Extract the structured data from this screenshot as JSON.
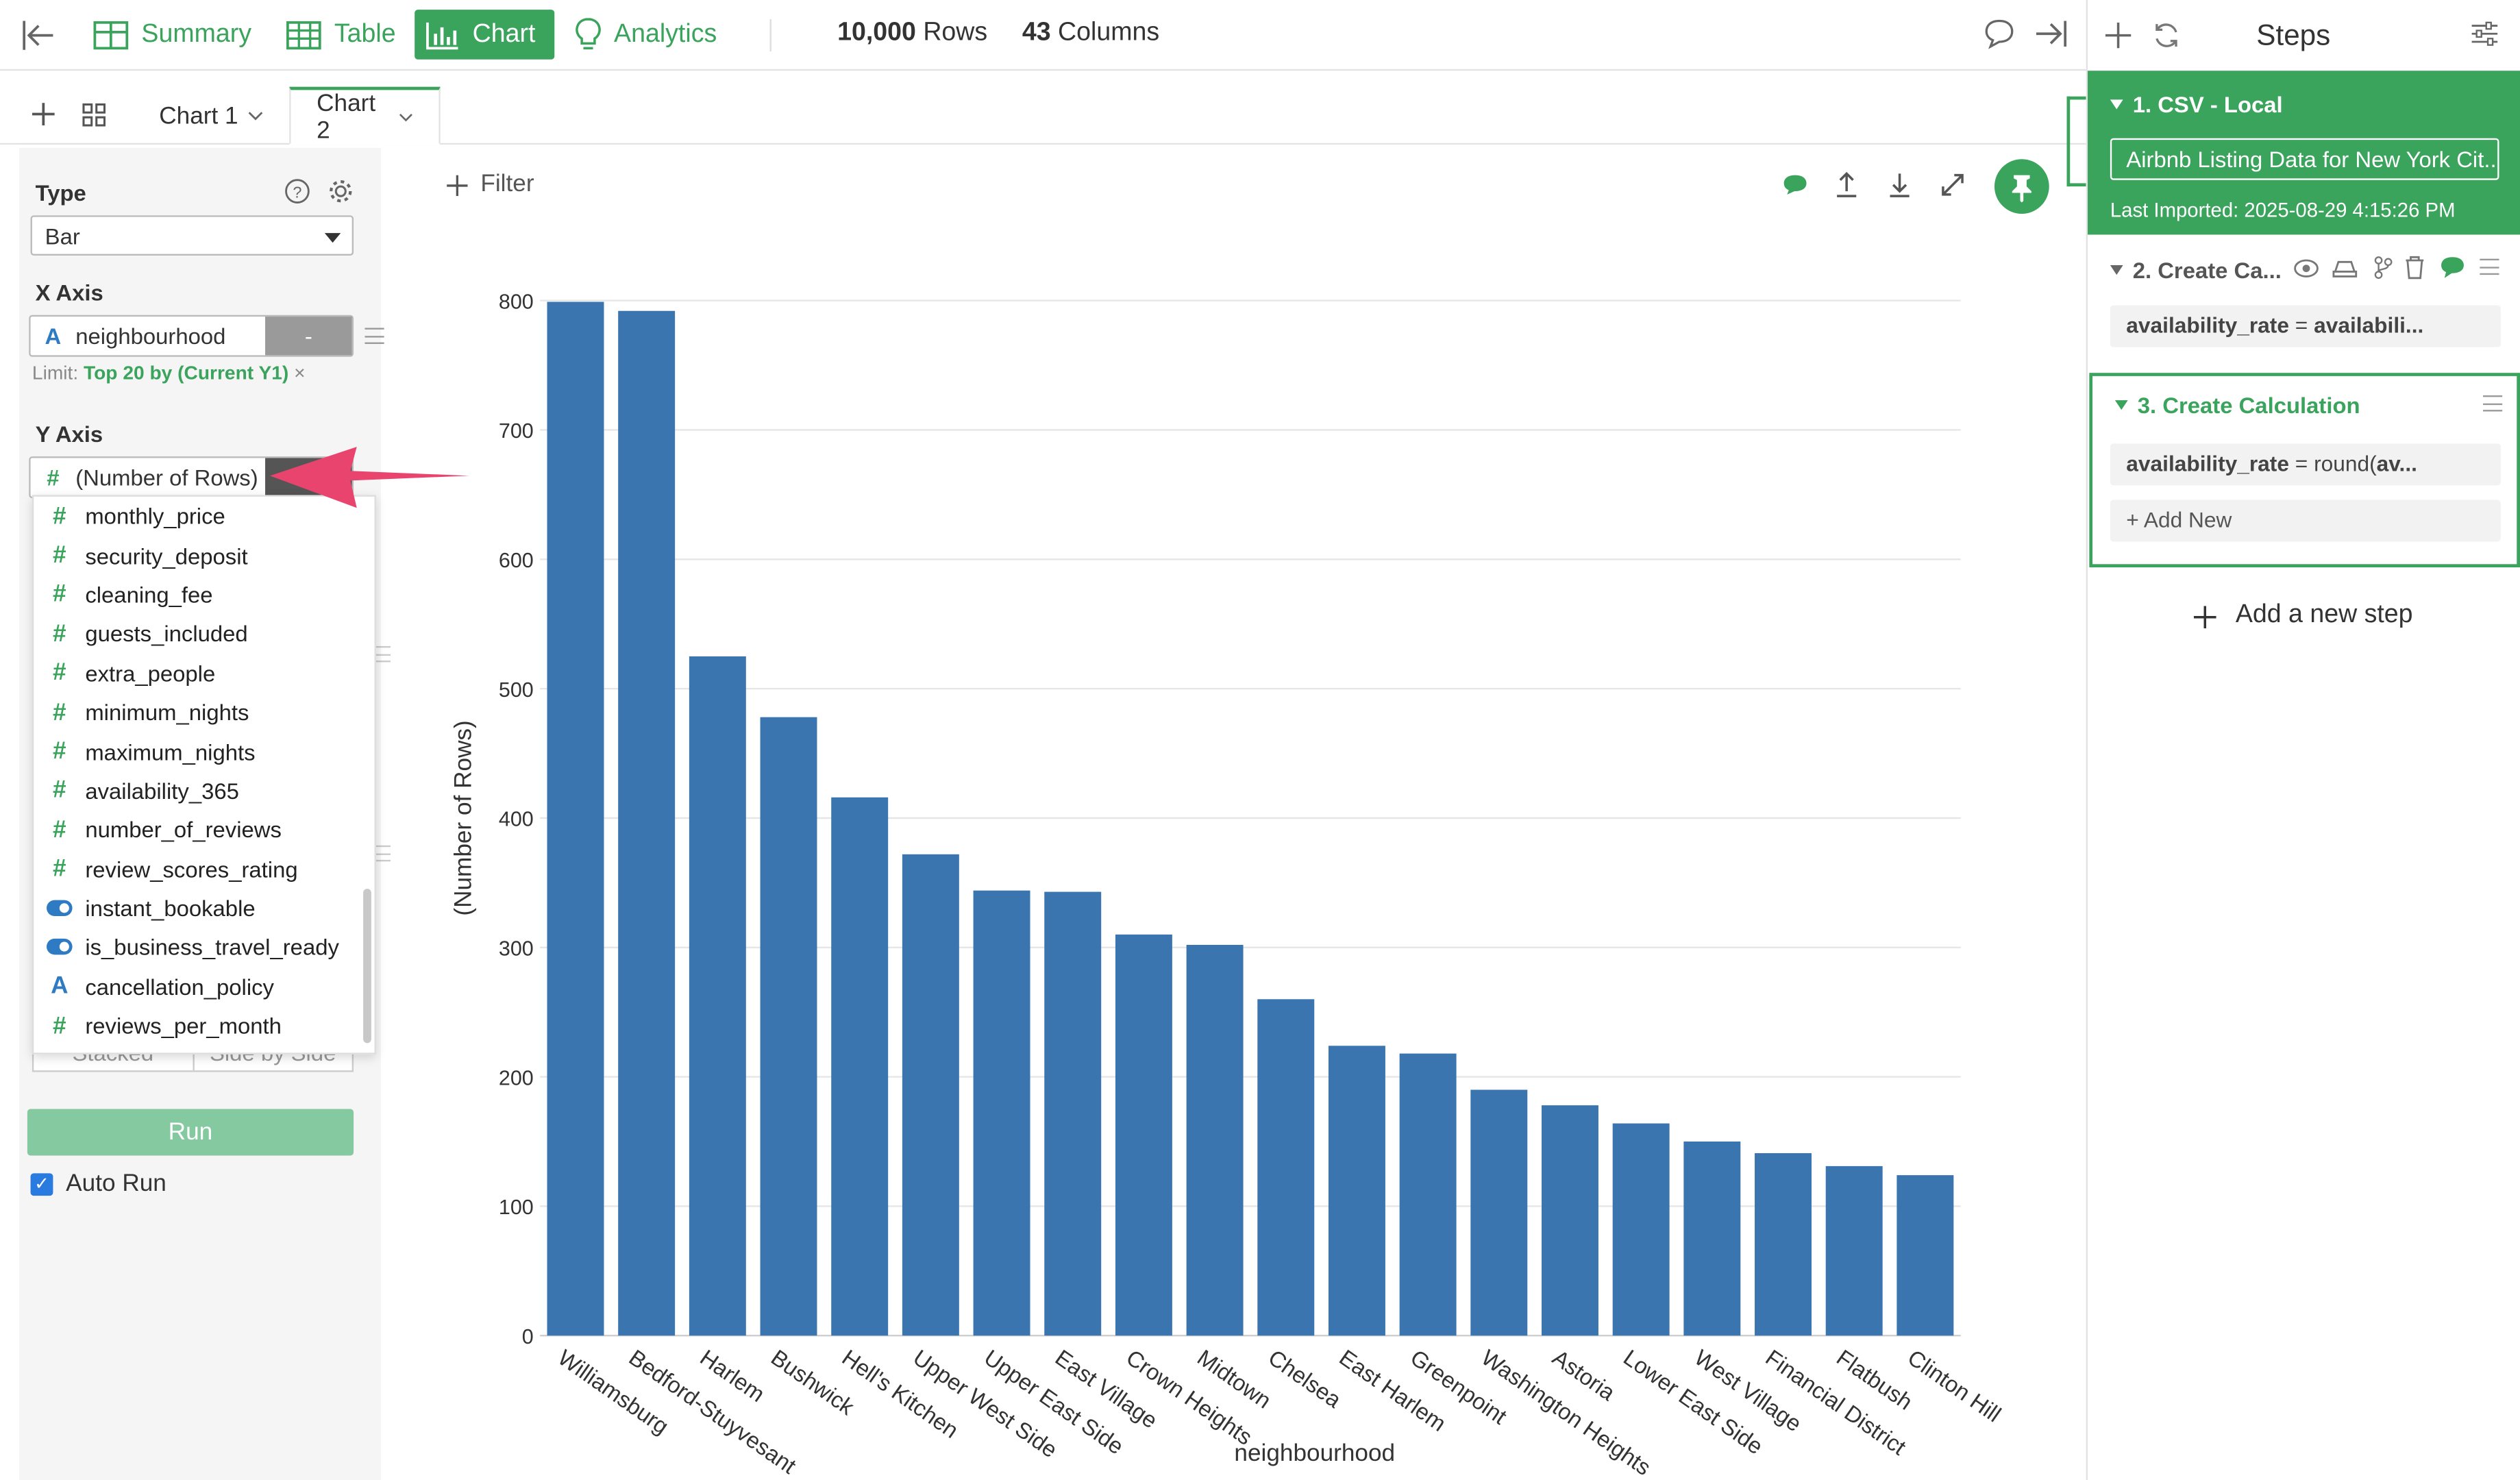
{
  "topbar": {
    "nav": [
      {
        "label": "Summary",
        "icon": "summary-grid-icon"
      },
      {
        "label": "Table",
        "icon": "table-icon"
      },
      {
        "label": "Chart",
        "icon": "chart-icon",
        "active": true
      },
      {
        "label": "Analytics",
        "icon": "lightbulb-icon"
      }
    ],
    "rows_value": "10,000",
    "rows_label": "Rows",
    "cols_value": "43",
    "cols_label": "Columns"
  },
  "tabs": {
    "items": [
      {
        "label": "Chart 1"
      },
      {
        "label": "Chart 2",
        "active": true
      }
    ]
  },
  "config": {
    "type_label": "Type",
    "type_value": "Bar",
    "x_axis_label": "X Axis",
    "x_field": "neighbourhood",
    "x_agg": "-",
    "limit_prefix": "Limit:",
    "limit_value": "Top 20 by (Current Y1)",
    "limit_remove": "×",
    "y_axis_label": "Y Axis",
    "y_field": "(Number of Rows)",
    "dropdown_items": [
      {
        "label": "monthly_price",
        "kind": "number"
      },
      {
        "label": "security_deposit",
        "kind": "number"
      },
      {
        "label": "cleaning_fee",
        "kind": "number"
      },
      {
        "label": "guests_included",
        "kind": "number"
      },
      {
        "label": "extra_people",
        "kind": "number"
      },
      {
        "label": "minimum_nights",
        "kind": "number"
      },
      {
        "label": "maximum_nights",
        "kind": "number"
      },
      {
        "label": "availability_365",
        "kind": "number"
      },
      {
        "label": "number_of_reviews",
        "kind": "number"
      },
      {
        "label": "review_scores_rating",
        "kind": "number"
      },
      {
        "label": "instant_bookable",
        "kind": "logical"
      },
      {
        "label": "is_business_travel_ready",
        "kind": "logical"
      },
      {
        "label": "cancellation_policy",
        "kind": "character"
      },
      {
        "label": "reviews_per_month",
        "kind": "number"
      }
    ],
    "stacked_label": "Stacked",
    "side_label": "Side by Side",
    "run_label": "Run",
    "auto_run_label": "Auto Run",
    "auto_run_checked": true
  },
  "chart_toolbar": {
    "filter_label": "Filter"
  },
  "chart_data": {
    "type": "bar",
    "xlabel": "neighbourhood",
    "ylabel": "(Number of Rows)",
    "ylim": [
      0,
      800
    ],
    "yticks": [
      0,
      100,
      200,
      300,
      400,
      500,
      600,
      700,
      800
    ],
    "grid": true,
    "bar_color": "#3a75b0",
    "categories": [
      "Williamsburg",
      "Bedford-Stuyvesant",
      "Harlem",
      "Bushwick",
      "Hell's Kitchen",
      "Upper West Side",
      "Upper East Side",
      "East Village",
      "Crown Heights",
      "Midtown",
      "Chelsea",
      "East Harlem",
      "Greenpoint",
      "Washington Heights",
      "Astoria",
      "Lower East Side",
      "West Village",
      "Financial District",
      "Flatbush",
      "Clinton Hill"
    ],
    "values": [
      799,
      792,
      525,
      478,
      416,
      372,
      344,
      343,
      310,
      302,
      260,
      224,
      218,
      190,
      178,
      164,
      150,
      141,
      131,
      124
    ]
  },
  "steps": {
    "title": "Steps",
    "step1_title": "1. CSV - Local",
    "step1_source": "Airbnb Listing Data for New York Cit...",
    "step1_imported": "Last Imported: 2025-08-29 4:15:26 PM",
    "step2_title": "2. Create Ca...",
    "step2_var": "availability_rate",
    "step2_eq": "=",
    "step2_expr": "availabili...",
    "step3_title": "3. Create Calculation",
    "step3_var": "availability_rate",
    "step3_eq": "=",
    "step3_expr_a": "round(",
    "step3_expr_b": "av...",
    "add_new": "Add New",
    "add_step": "Add a new step"
  },
  "colors": {
    "accent": "#3aa35c",
    "bar": "#3a75b0",
    "arrow": "#e8446d"
  }
}
